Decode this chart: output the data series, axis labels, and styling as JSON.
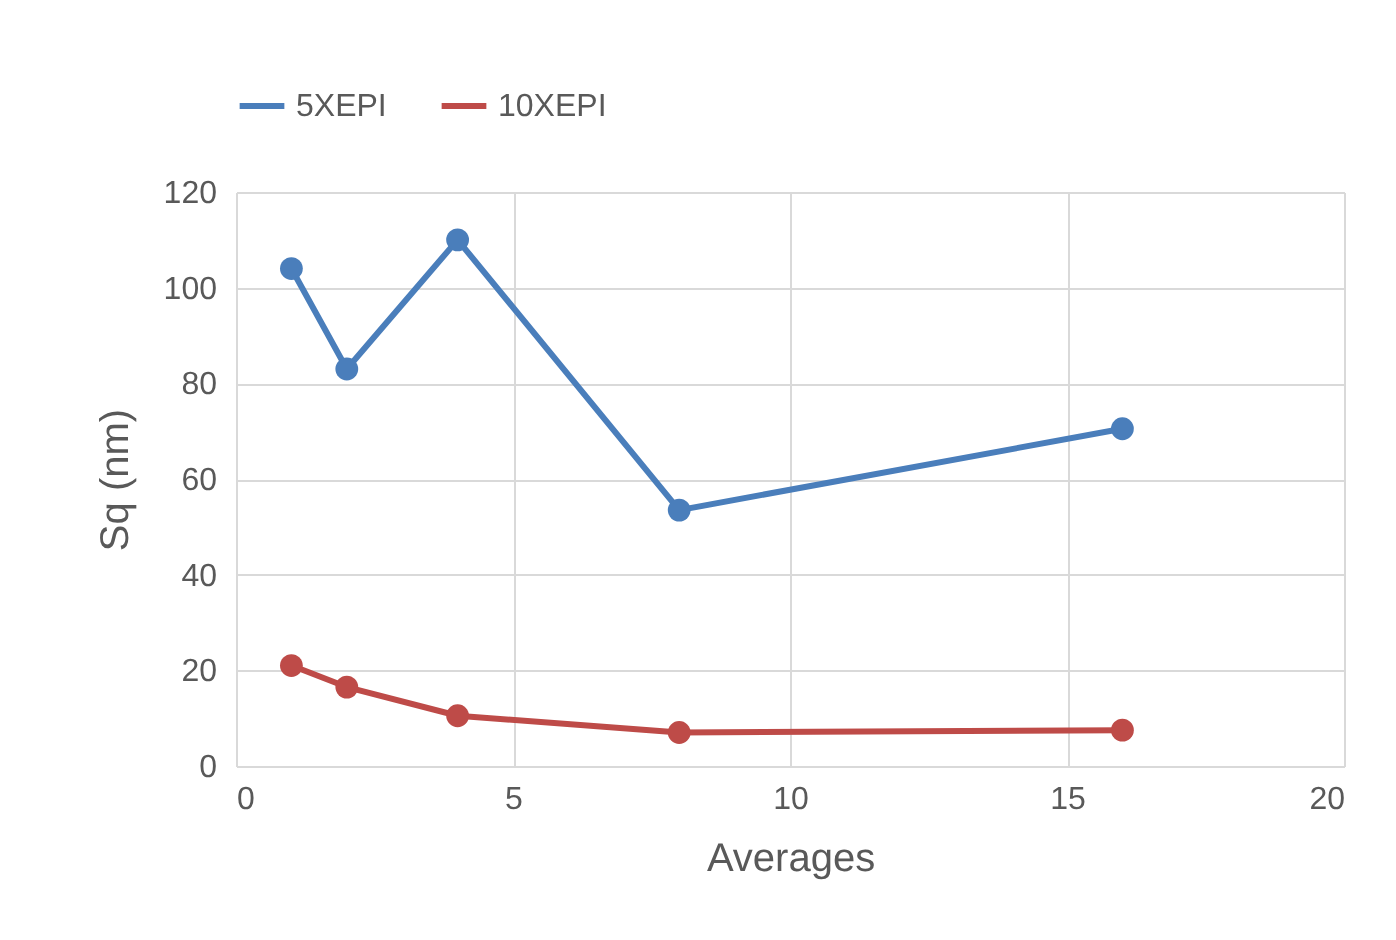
{
  "chart_data": {
    "type": "line",
    "xlabel": "Averages",
    "ylabel": "Sq (nm)",
    "x": [
      1,
      2,
      4,
      8,
      16
    ],
    "series": [
      {
        "name": "5XEPI",
        "color": "#4a7ebb",
        "values": [
          104,
          83,
          110,
          53.5,
          70.5
        ]
      },
      {
        "name": "10XEPI",
        "color": "#be4b48",
        "values": [
          21,
          16.5,
          10.5,
          7,
          7.5
        ]
      }
    ],
    "xlim": [
      0,
      20
    ],
    "xticks": [
      0,
      5,
      10,
      15,
      20
    ],
    "ylim": [
      0,
      120
    ],
    "yticks": [
      0,
      20,
      40,
      60,
      80,
      100,
      120
    ],
    "grid": true,
    "legend": "top",
    "marker": "circle",
    "line_style": "solid"
  }
}
